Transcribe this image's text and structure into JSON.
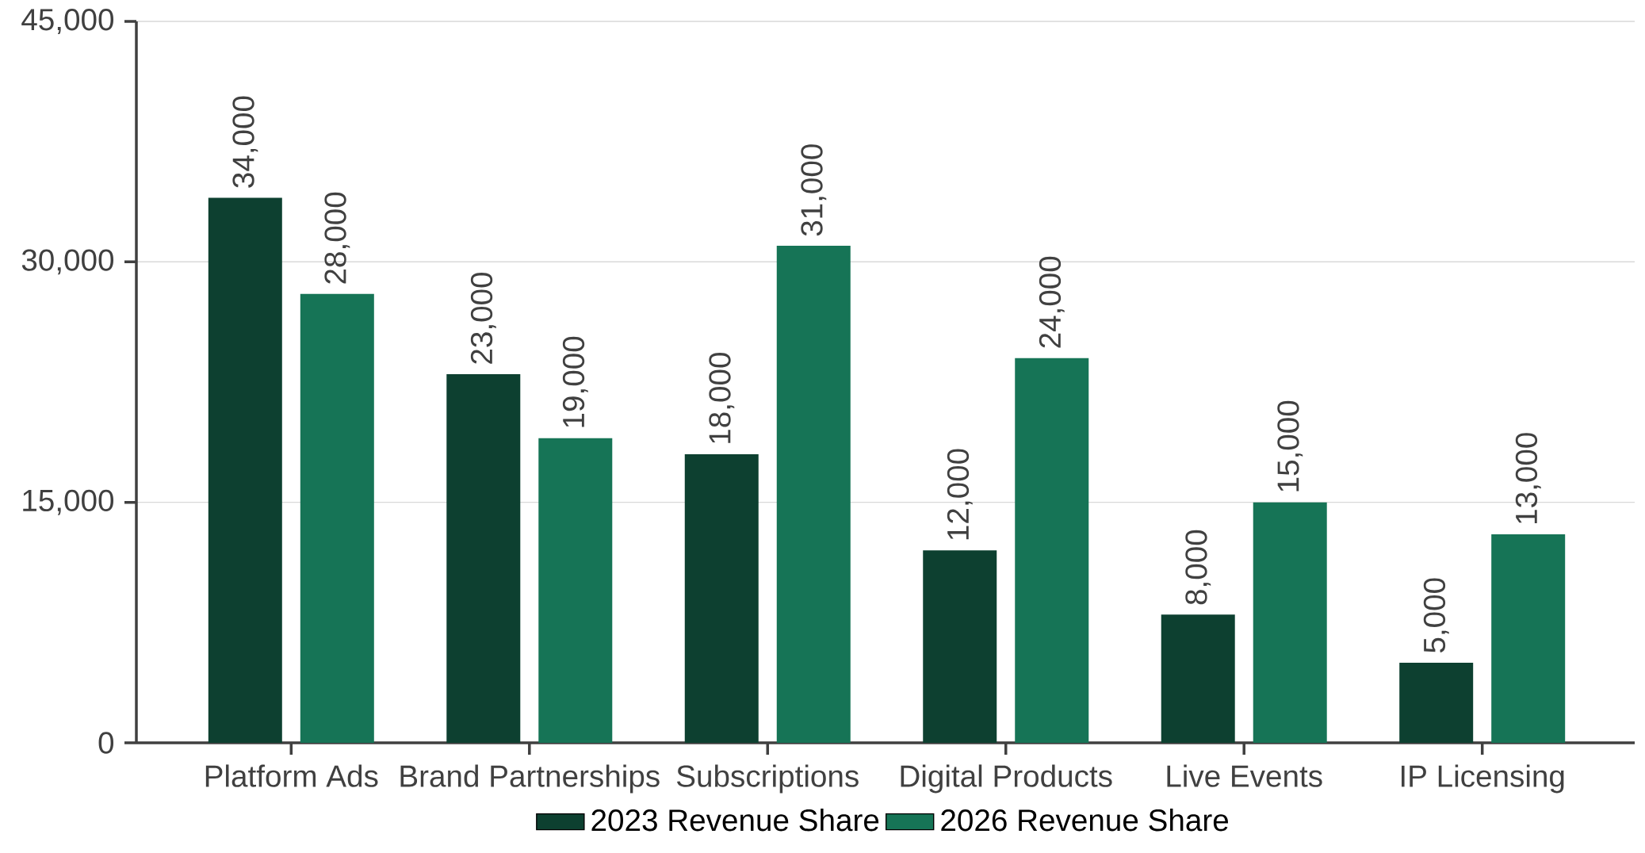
{
  "chart_data": {
    "type": "bar",
    "categories": [
      "Platform Ads",
      "Brand Partnerships",
      "Subscriptions",
      "Digital Products",
      "Live Events",
      "IP Licensing"
    ],
    "series": [
      {
        "name": "2023 Revenue Share",
        "color": "#0d4030",
        "values": [
          34000,
          23000,
          18000,
          12000,
          8000,
          5000
        ],
        "value_labels": [
          "34,000",
          "23,000",
          "18,000",
          "12,000",
          "8,000",
          "5,000"
        ]
      },
      {
        "name": "2026 Revenue Share",
        "color": "#167456",
        "values": [
          28000,
          19000,
          31000,
          24000,
          15000,
          13000
        ],
        "value_labels": [
          "28,000",
          "19,000",
          "31,000",
          "24,000",
          "15,000",
          "13,000"
        ]
      }
    ],
    "ylim": [
      0,
      45000
    ],
    "yticks": [
      {
        "value": 0,
        "label": "0"
      },
      {
        "value": 15000,
        "label": "15,000"
      },
      {
        "value": 30000,
        "label": "30,000"
      },
      {
        "value": 45000,
        "label": "45,000"
      }
    ],
    "grid": "y",
    "legend": "bottom"
  }
}
